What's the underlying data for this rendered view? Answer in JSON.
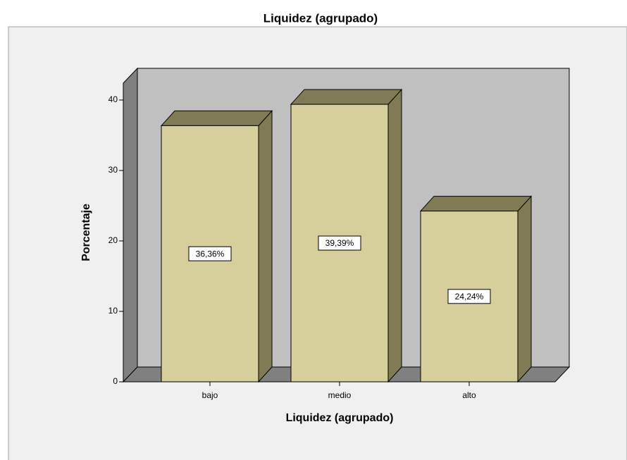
{
  "chart_data": {
    "type": "bar3d",
    "title": "Liquidez (agrupado)",
    "x_label": "Liquidez (agrupado)",
    "y_label": "Porcentaje",
    "categories": [
      "bajo",
      "medio",
      "alto"
    ],
    "values": [
      36.36,
      39.39,
      24.24
    ],
    "value_labels": [
      "36,36%",
      "39,39%",
      "24,24%"
    ],
    "color": "#d6cf9b",
    "ylim": [
      0,
      42.4
    ],
    "yticks": [
      0,
      10,
      20,
      30,
      40
    ]
  }
}
